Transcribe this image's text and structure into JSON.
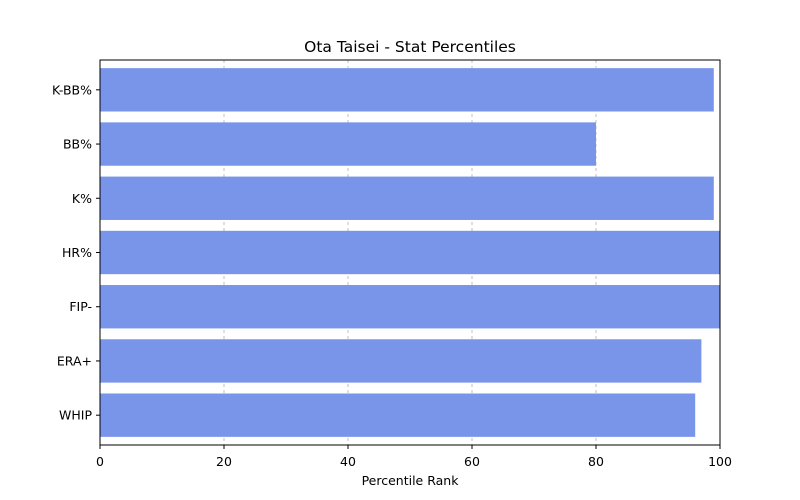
{
  "chart_data": {
    "type": "bar",
    "orientation": "horizontal",
    "title": "Ota Taisei - Stat Percentiles",
    "xlabel": "Percentile Rank",
    "ylabel": "",
    "categories": [
      "WHIP",
      "ERA+",
      "FIP-",
      "HR%",
      "K%",
      "BB%",
      "K-BB%"
    ],
    "values": [
      96,
      97,
      100,
      100,
      99,
      80,
      99
    ],
    "xlim": [
      0,
      100
    ],
    "xticks": [
      "0",
      "20",
      "40",
      "60",
      "80",
      "100"
    ],
    "grid": "x, dashed",
    "bar_color": "#7995e9"
  }
}
